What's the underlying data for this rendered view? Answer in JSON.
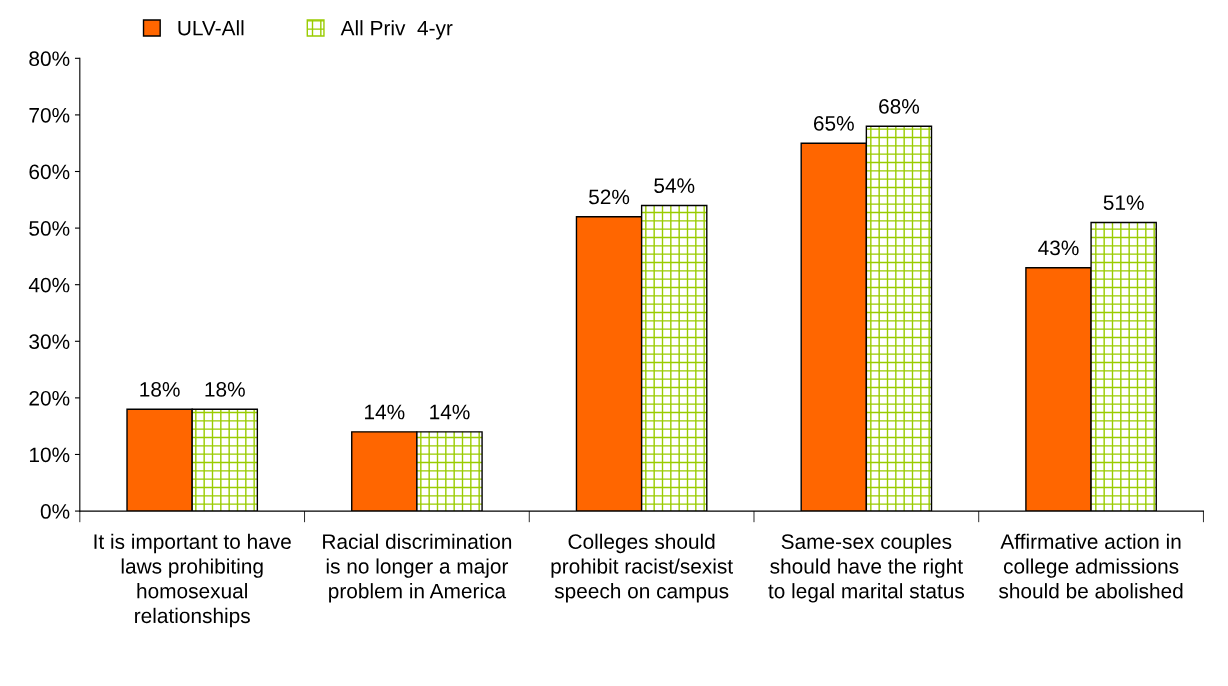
{
  "chart_data": {
    "type": "bar",
    "categories": [
      "It is important to have laws prohibiting homosexual relationships",
      "Racial discrimination is no longer a major problem in America",
      "Colleges should prohibit racist/sexist speech on campus",
      "Same-sex couples should have the right to legal marital status",
      "Affirmative action in college admissions should be abolished"
    ],
    "series": [
      {
        "name": "ULV-All",
        "color": "#ff6600",
        "values": [
          18,
          14,
          52,
          65,
          43
        ],
        "value_labels": [
          "18%",
          "14%",
          "52%",
          "65%",
          "43%"
        ]
      },
      {
        "name": "All Priv  4-yr",
        "color": "#99cc00",
        "values": [
          18,
          14,
          54,
          68,
          51
        ],
        "value_labels": [
          "18%",
          "14%",
          "54%",
          "68%",
          "51%"
        ]
      }
    ],
    "ylim": [
      0,
      80
    ],
    "yticks": [
      {
        "value": 0,
        "label": "0%"
      },
      {
        "value": 10,
        "label": "10%"
      },
      {
        "value": 20,
        "label": "20%"
      },
      {
        "value": 30,
        "label": "30%"
      },
      {
        "value": 40,
        "label": "40%"
      },
      {
        "value": 50,
        "label": "50%"
      },
      {
        "value": 60,
        "label": "60%"
      },
      {
        "value": 70,
        "label": "70%"
      },
      {
        "value": 80,
        "label": "80%"
      }
    ],
    "grid": false,
    "legend": "top"
  }
}
